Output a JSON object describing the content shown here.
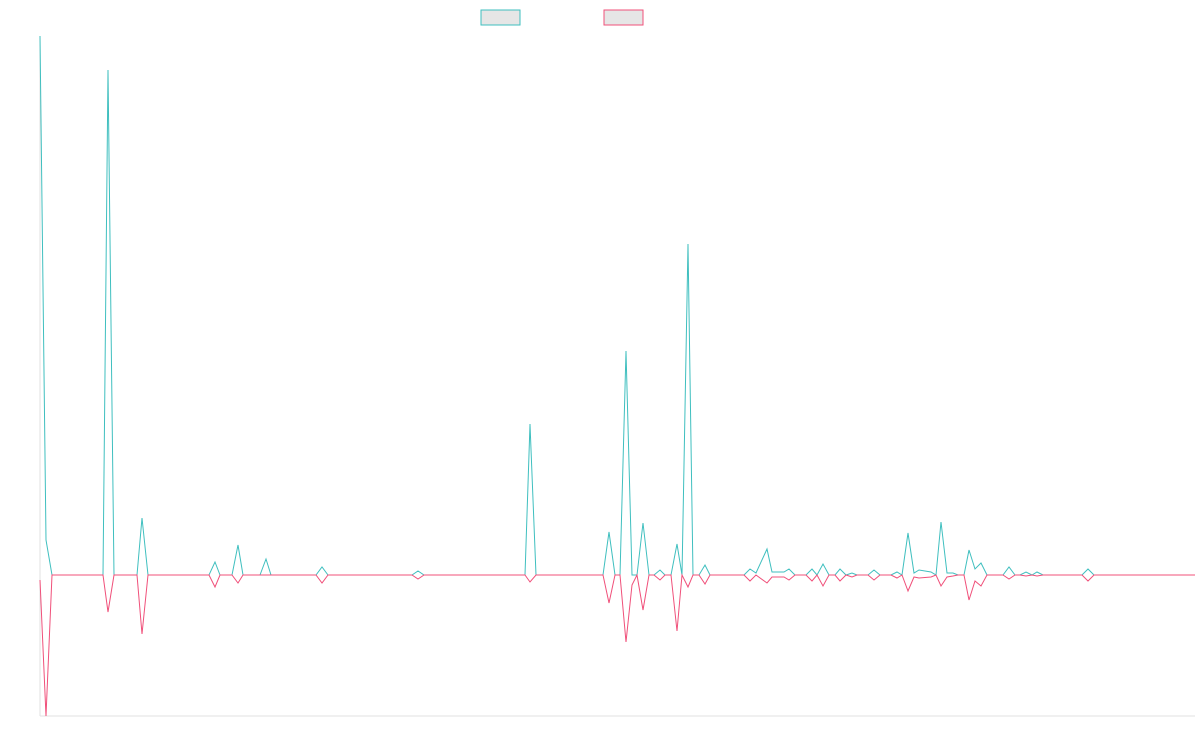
{
  "chart_data": {
    "type": "line",
    "x": [
      0,
      6,
      12,
      63,
      68,
      74,
      97,
      102,
      108,
      169,
      175,
      180,
      192,
      198,
      203,
      220,
      226,
      231,
      276,
      282,
      288,
      372,
      378,
      384,
      485,
      490,
      496,
      563,
      569,
      575,
      580,
      586,
      592,
      597,
      603,
      609,
      614,
      620,
      625,
      631,
      637,
      642,
      648,
      653,
      659,
      665,
      670,
      704,
      710,
      716,
      727,
      732,
      744,
      749,
      755,
      766,
      772,
      777,
      783,
      789,
      795,
      800,
      806,
      812,
      817,
      828,
      834,
      840,
      851,
      857,
      862,
      868,
      874,
      879,
      891,
      896,
      901,
      907,
      913,
      918,
      924,
      929,
      935,
      941,
      947,
      963,
      969,
      975,
      980,
      986,
      992,
      997,
      1003,
      1042,
      1048,
      1054,
      1155
    ],
    "xlim": [
      0,
      1155
    ],
    "ylim": [
      -141,
      539
    ],
    "series": [
      {
        "color": "#3fbfbf",
        "values": [
          539,
          35,
          0,
          0,
          505,
          0,
          0,
          57,
          0,
          0,
          13,
          0,
          0,
          30,
          0,
          0,
          16,
          0,
          0,
          8,
          0,
          0,
          4,
          0,
          0,
          151,
          0,
          0,
          43,
          0,
          0,
          224,
          0,
          0,
          52,
          0,
          0,
          5,
          0,
          0,
          31,
          0,
          331,
          0,
          0,
          10,
          0,
          0,
          6,
          2,
          26,
          3,
          3,
          6,
          0,
          0,
          6,
          0,
          11,
          0,
          0,
          6,
          0,
          2,
          0,
          0,
          5,
          0,
          0,
          3,
          0,
          42,
          2,
          5,
          3,
          0,
          53,
          2,
          2,
          0,
          0,
          25,
          6,
          12,
          0,
          0,
          8,
          0,
          0,
          3,
          0,
          3,
          0,
          0,
          6,
          0,
          0
        ]
      },
      {
        "color": "#f0507a",
        "values": [
          -5,
          -141,
          0,
          0,
          -37,
          0,
          0,
          -59,
          0,
          0,
          -12,
          0,
          0,
          -8,
          0,
          0,
          0,
          0,
          0,
          -8,
          0,
          0,
          -4,
          0,
          0,
          -7,
          0,
          0,
          -28,
          0,
          0,
          -67,
          -10,
          0,
          -35,
          0,
          0,
          -5,
          0,
          0,
          -56,
          0,
          -12,
          0,
          0,
          -9,
          0,
          0,
          -6,
          0,
          -8,
          -2,
          -2,
          -5,
          0,
          0,
          -6,
          0,
          -11,
          0,
          0,
          -6,
          0,
          -2,
          0,
          0,
          -5,
          0,
          0,
          -3,
          0,
          -16,
          -2,
          -3,
          -2,
          0,
          -11,
          -2,
          -1,
          0,
          0,
          -25,
          -6,
          -11,
          0,
          0,
          -4,
          0,
          0,
          -1,
          0,
          -1,
          0,
          0,
          -6,
          0,
          0
        ]
      }
    ]
  }
}
